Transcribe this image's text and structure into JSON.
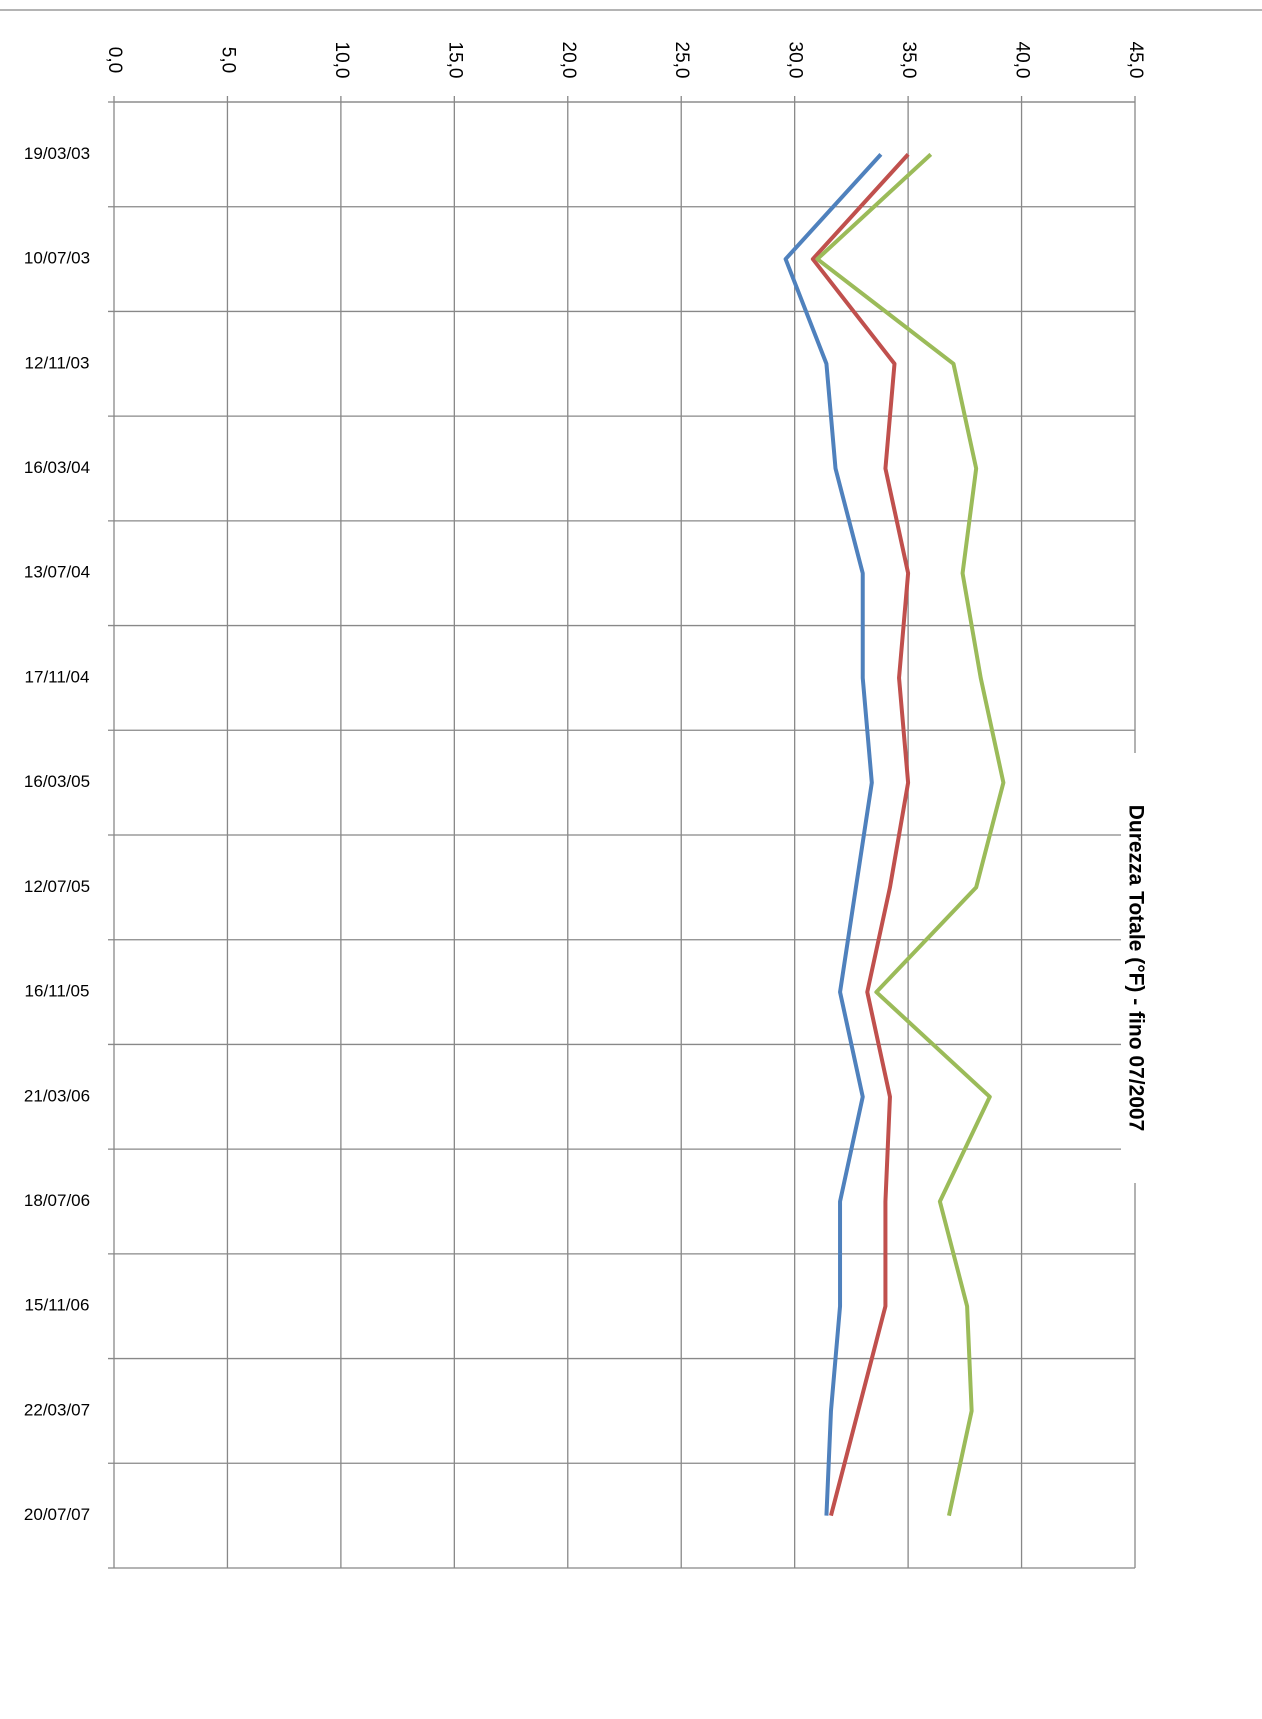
{
  "chart_data": {
    "type": "line",
    "orientation": "horizontal",
    "title": "Durezza Totale (°F) - fino 07/2007",
    "categories": [
      "19/03/03",
      "10/07/03",
      "12/11/03",
      "16/03/04",
      "13/07/04",
      "17/11/04",
      "16/03/05",
      "12/07/05",
      "16/11/05",
      "21/03/06",
      "18/07/06",
      "15/11/06",
      "22/03/07",
      "20/07/07"
    ],
    "series": [
      {
        "color": "#4f81bd",
        "values": [
          33.8,
          29.6,
          31.4,
          31.8,
          33.0,
          33.0,
          33.4,
          32.7,
          32.0,
          33.0,
          32.0,
          32.0,
          31.6,
          31.4
        ]
      },
      {
        "color": "#c0504d",
        "values": [
          35.0,
          30.8,
          34.4,
          34.0,
          35.0,
          34.6,
          35.0,
          34.2,
          33.2,
          34.2,
          34.0,
          34.0,
          32.8,
          31.6
        ]
      },
      {
        "color": "#9bbb59",
        "values": [
          36.0,
          31.0,
          37.0,
          38.0,
          37.4,
          38.2,
          39.2,
          38.0,
          33.6,
          38.6,
          36.4,
          37.6,
          37.8,
          36.8
        ]
      }
    ],
    "ylim": [
      0,
      45
    ],
    "yticks": [
      {
        "value": 0,
        "label": "0,0"
      },
      {
        "value": 5,
        "label": "5,0"
      },
      {
        "value": 10,
        "label": "10,0"
      },
      {
        "value": 15,
        "label": "15,0"
      },
      {
        "value": 20,
        "label": "20,0"
      },
      {
        "value": 25,
        "label": "25,0"
      },
      {
        "value": 30,
        "label": "30,0"
      },
      {
        "value": 35,
        "label": "35,0"
      },
      {
        "value": 40,
        "label": "40,0"
      },
      {
        "value": 45,
        "label": "45,0"
      }
    ],
    "grid": true
  }
}
